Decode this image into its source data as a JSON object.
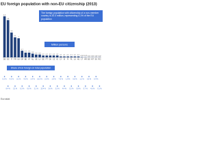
{
  "chart_data": {
    "type": "bar",
    "title": "EU foreign population with non-EU citizenship (2013)",
    "annotation": "The foreign population with citizenship of a non-member country is 20.3 million, representing 4.1% of the EU population",
    "y_label": "Million persons",
    "categories": [
      "DE",
      "ES",
      "IT",
      "FR",
      "UK",
      "GR",
      "BE",
      "AT",
      "NL",
      "SE",
      "LV",
      "EE",
      "PT",
      "DK",
      "CZ",
      "IE",
      "CY",
      "SI",
      "FI",
      "PL",
      "LU",
      "HU",
      "LT",
      "HR",
      "BG",
      "MT",
      "SK",
      "RO"
    ],
    "values": [
      4.3,
      3.9,
      2.6,
      2.1,
      2.0,
      0.7,
      0.5,
      0.5,
      0.4,
      0.3,
      0.3,
      0.2,
      0.2,
      0.2,
      0.2,
      0.2,
      0.1,
      0.1,
      0.1,
      0.1,
      0.1,
      0.1,
      0.04,
      0.03,
      0.02,
      0.02,
      0.02,
      0.02
    ],
    "color": "#1f3f7a",
    "ylim": [
      0,
      5
    ],
    "shares": {
      "name": "Share of EU foreign on total population",
      "values": [
        5.3,
        8.4,
        4.3,
        3.2,
        3.1,
        6.3,
        4.5,
        6.0,
        2.4,
        3.1,
        15.3,
        15.4,
        2.0,
        3.6,
        1.9,
        3.3,
        7.5,
        4.4,
        1.9,
        0.2,
        5.8,
        0.8,
        1.2,
        0.7,
        0.3,
        4.6,
        0.4,
        0.1
      ],
      "value_labels": [
        "5.3 %",
        "8.4 %",
        "4.3 %",
        "3.2 %",
        "3.1 %",
        "6.3 %",
        "4.5 %",
        "6.0 %",
        "2.4 %",
        "3.1 %",
        "15.3 %",
        "15.4 %",
        "2.0 %",
        "3.6 %",
        "1.9 %",
        "3.3 %",
        "7.5 %",
        "4.4 %",
        "1.9 %",
        "0.2 %",
        "5.8 %",
        "0.8 %",
        "1.2 %",
        "0.7 %",
        "0.3 %",
        "4.6 %",
        "0.4 %",
        "0.1 %"
      ]
    },
    "source": "Eurostat"
  }
}
